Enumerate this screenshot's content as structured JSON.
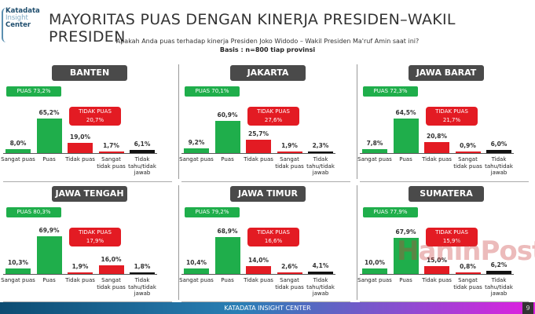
{
  "logo": {
    "line1": "Katadata",
    "line2": "Insight",
    "line3": "Center"
  },
  "title": "MAYORITAS PUAS DENGAN KINERJA PRESIDEN–WAKIL PRESIDEN",
  "question": "Apakah Anda puas terhadap kinerja Presiden Joko Widodo – Wakil Presiden Ma'ruf Amin saat ini?",
  "basis": "Basis : n=800 tiap provinsi",
  "footer": "KATADATA INSIGHT CENTER",
  "page_number": "9",
  "watermark": "HaninPost",
  "colors": {
    "green": "#1fae4b",
    "red": "#e31b23",
    "black": "#111111",
    "title_box": "#4a4a4a"
  },
  "chart_data": [
    {
      "type": "bar",
      "title": "BANTEN",
      "puas_label": "PUAS 73,2%",
      "tidak_puas_label": [
        "TIDAK PUAS",
        "20,7%"
      ],
      "categories": [
        "Sangat puas",
        "Puas",
        "Tidak puas",
        "Sangat tidak puas",
        "Tidak tahu/tidak jawab"
      ],
      "values": [
        8.0,
        65.2,
        19.0,
        1.7,
        6.1
      ],
      "labels": [
        "8,0%",
        "65,2%",
        "19,0%",
        "1,7%",
        "6,1%"
      ],
      "bar_colors": [
        "green",
        "green",
        "red",
        "red",
        "black"
      ]
    },
    {
      "type": "bar",
      "title": "JAKARTA",
      "puas_label": "PUAS 70,1%",
      "tidak_puas_label": [
        "TIDAK PUAS",
        "27,6%"
      ],
      "categories": [
        "Sangat puas",
        "Puas",
        "Tidak puas",
        "Sangat tidak puas",
        "Tidak tahu/tidak jawab"
      ],
      "values": [
        9.2,
        60.9,
        25.7,
        1.9,
        2.3
      ],
      "labels": [
        "9,2%",
        "60,9%",
        "25,7%",
        "1,9%",
        "2,3%"
      ],
      "bar_colors": [
        "green",
        "green",
        "red",
        "red",
        "black"
      ]
    },
    {
      "type": "bar",
      "title": "JAWA BARAT",
      "puas_label": "PUAS 72,3%",
      "tidak_puas_label": [
        "TIDAK PUAS",
        "21,7%"
      ],
      "categories": [
        "Sangat puas",
        "Puas",
        "Tidak puas",
        "Sangat tidak puas",
        "Tidak tahu/tidak jawab"
      ],
      "values": [
        7.8,
        64.5,
        20.8,
        0.9,
        6.0
      ],
      "labels": [
        "7,8%",
        "64,5%",
        "20,8%",
        "0,9%",
        "6,0%"
      ],
      "bar_colors": [
        "green",
        "green",
        "red",
        "red",
        "black"
      ]
    },
    {
      "type": "bar",
      "title": "JAWA TENGAH",
      "puas_label": "PUAS 80,3%",
      "tidak_puas_label": [
        "TIDAK PUAS",
        "17,9%"
      ],
      "categories": [
        "Sangat puas",
        "Puas",
        "Tidak puas",
        "Sangat tidak puas",
        "Tidak tahu/tidak jawab"
      ],
      "values": [
        10.3,
        69.9,
        1.9,
        16.0,
        1.8
      ],
      "labels": [
        "10,3%",
        "69,9%",
        "1,9%",
        "16,0%",
        "1,8%"
      ],
      "bar_colors": [
        "green",
        "green",
        "red",
        "red",
        "black"
      ]
    },
    {
      "type": "bar",
      "title": "JAWA TIMUR",
      "puas_label": "PUAS 79,2%",
      "tidak_puas_label": [
        "TIDAK PUAS",
        "16,6%"
      ],
      "categories": [
        "Sangat puas",
        "Puas",
        "Tidak puas",
        "Sangat tidak puas",
        "Tidak tahu/tidak jawab"
      ],
      "values": [
        10.4,
        68.9,
        14.0,
        2.6,
        4.1
      ],
      "labels": [
        "10,4%",
        "68,9%",
        "14,0%",
        "2,6%",
        "4,1%"
      ],
      "bar_colors": [
        "green",
        "green",
        "red",
        "red",
        "black"
      ]
    },
    {
      "type": "bar",
      "title": "SUMATERA UTARA",
      "puas_label": "PUAS 77,9%",
      "tidak_puas_label": [
        "TIDAK PUAS",
        "15,9%"
      ],
      "categories": [
        "Sangat puas",
        "Puas",
        "Tidak puas",
        "Sangat tidak puas",
        "Tidak tahu/tidak jawab"
      ],
      "values": [
        10.0,
        67.9,
        15.0,
        0.8,
        6.2
      ],
      "labels": [
        "10,0%",
        "67,9%",
        "15,0%",
        "0,8%",
        "6,2%"
      ],
      "bar_colors": [
        "green",
        "green",
        "red",
        "red",
        "black"
      ]
    }
  ]
}
